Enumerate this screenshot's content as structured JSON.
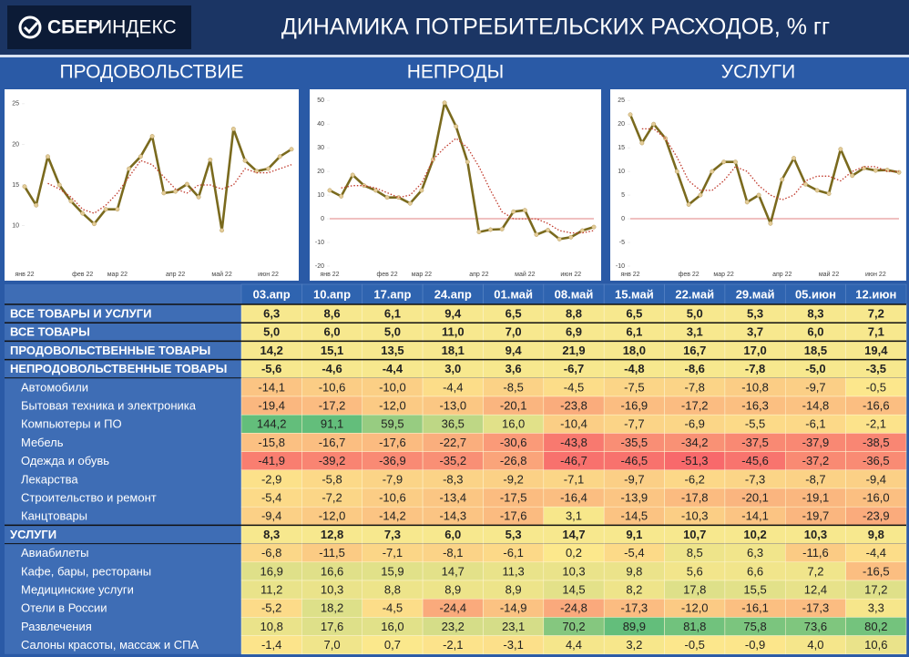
{
  "header": {
    "logo_brand": "СБЕР",
    "logo_product": "ИНДЕКС",
    "title": "ДИНАМИКА ПОТРЕБИТЕЛЬСКИХ РАСХОДОВ, % гг"
  },
  "chart_data": [
    {
      "type": "line",
      "title": "ПРОДОВОЛЬСТВИЕ",
      "categories": [
        "янв 22",
        null,
        null,
        null,
        null,
        "фев 22",
        null,
        null,
        "мар 22",
        null,
        null,
        null,
        null,
        "апр 22",
        null,
        null,
        null,
        "май 22",
        null,
        null,
        null,
        "июн 22",
        null,
        null
      ],
      "series": [
        {
          "color": "#7a6a1e",
          "style": "solid",
          "markers": true,
          "values": [
            14.8,
            12.5,
            18.5,
            15,
            13,
            11.5,
            10.2,
            12,
            12,
            17,
            18.5,
            21,
            14,
            14.2,
            15.1,
            13.5,
            18.1,
            9.4,
            21.9,
            18.0,
            16.7,
            17.0,
            18.5,
            19.4
          ]
        },
        {
          "color": "#c0392b",
          "style": "dotted",
          "markers": false,
          "values": [
            null,
            null,
            15.2,
            14.5,
            13.5,
            12,
            11.5,
            12.5,
            14,
            16,
            18,
            17.5,
            16,
            14.5,
            14,
            15,
            15,
            14.5,
            15,
            17,
            16.5,
            16.5,
            17,
            17.5
          ]
        }
      ],
      "ylim": [
        5,
        26
      ],
      "yticks": [
        10,
        15,
        20,
        25
      ]
    },
    {
      "type": "line",
      "title": "НЕПРОДЫ",
      "categories": [
        "янв 22",
        null,
        null,
        null,
        null,
        "фев 22",
        null,
        null,
        "мар 22",
        null,
        null,
        null,
        null,
        "апр 22",
        null,
        null,
        null,
        "май 22",
        null,
        null,
        null,
        "июн 22",
        null,
        null
      ],
      "series": [
        {
          "color": "#7a6a1e",
          "style": "solid",
          "markers": true,
          "values": [
            12,
            9.5,
            18.5,
            14,
            12,
            9,
            9,
            6.5,
            12,
            25,
            49,
            39,
            24,
            -5.6,
            -4.6,
            -4.4,
            3.0,
            3.6,
            -6.7,
            -4.8,
            -8.6,
            -7.8,
            -5.0,
            -3.5
          ]
        },
        {
          "color": "#c0392b",
          "style": "dotted",
          "markers": false,
          "values": [
            null,
            13,
            14,
            14,
            13,
            11,
            9,
            10,
            15,
            25,
            30,
            34,
            30,
            22,
            12,
            3,
            0,
            0,
            0,
            -2,
            -5,
            -6,
            -6,
            -5
          ]
        }
      ],
      "ylim": [
        -20,
        52
      ],
      "yticks": [
        -20,
        -10,
        0,
        10,
        20,
        30,
        40,
        50
      ]
    },
    {
      "type": "line",
      "title": "УСЛУГИ",
      "categories": [
        "янв 22",
        null,
        null,
        null,
        null,
        "фев 22",
        null,
        null,
        "мар 22",
        null,
        null,
        null,
        null,
        "апр 22",
        null,
        null,
        null,
        "май 22",
        null,
        null,
        null,
        "июн 22",
        null,
        null
      ],
      "series": [
        {
          "color": "#7a6a1e",
          "style": "solid",
          "markers": true,
          "values": [
            22,
            16,
            20,
            17,
            10,
            3,
            5,
            10,
            12,
            12,
            3.5,
            5,
            -1,
            8.3,
            12.8,
            7.3,
            6.0,
            5.3,
            14.7,
            9.1,
            10.7,
            10.2,
            10.3,
            9.8
          ]
        },
        {
          "color": "#c0392b",
          "style": "dotted",
          "markers": false,
          "values": [
            null,
            19,
            19,
            17,
            13,
            8,
            6,
            6,
            8,
            11,
            10,
            7,
            5,
            4,
            5,
            8,
            9,
            9,
            8,
            10,
            11,
            11,
            10,
            10
          ]
        }
      ],
      "ylim": [
        -10,
        26
      ],
      "yticks": [
        -10,
        -5,
        0,
        5,
        10,
        15,
        20,
        25
      ]
    }
  ],
  "table": {
    "columns": [
      "03.апр",
      "10.апр",
      "17.апр",
      "24.апр",
      "01.май",
      "08.май",
      "15.май",
      "22.май",
      "29.май",
      "05.июн",
      "12.июн"
    ],
    "rows": [
      {
        "label": "ВСЕ ТОВАРЫ И УСЛУГИ",
        "total": true,
        "cells": [
          "6,3",
          "8,6",
          "6,1",
          "9,4",
          "6,5",
          "8,8",
          "6,5",
          "5,0",
          "5,3",
          "8,3",
          "7,2"
        ]
      },
      {
        "label": "ВСЕ ТОВАРЫ",
        "total": true,
        "cells": [
          "5,0",
          "6,0",
          "5,0",
          "11,0",
          "7,0",
          "6,9",
          "6,1",
          "3,1",
          "3,7",
          "6,0",
          "7,1"
        ]
      },
      {
        "label": "ПРОДОВОЛЬСТВЕННЫЕ ТОВАРЫ",
        "total": true,
        "cells": [
          "14,2",
          "15,1",
          "13,5",
          "18,1",
          "9,4",
          "21,9",
          "18,0",
          "16,7",
          "17,0",
          "18,5",
          "19,4"
        ]
      },
      {
        "label": "НЕПРОДОВОЛЬСТВЕННЫЕ ТОВАРЫ",
        "total": true,
        "cells": [
          "-5,6",
          "-4,6",
          "-4,4",
          "3,0",
          "3,6",
          "-6,7",
          "-4,8",
          "-8,6",
          "-7,8",
          "-5,0",
          "-3,5"
        ]
      },
      {
        "label": "Автомобили",
        "total": false,
        "cells": [
          "-14,1",
          "-10,6",
          "-10,0",
          "-4,4",
          "-8,5",
          "-4,5",
          "-7,5",
          "-7,8",
          "-10,8",
          "-9,7",
          "-0,5"
        ]
      },
      {
        "label": "Бытовая техника и электроника",
        "total": false,
        "cells": [
          "-19,4",
          "-17,2",
          "-12,0",
          "-13,0",
          "-20,1",
          "-23,8",
          "-16,9",
          "-17,2",
          "-16,3",
          "-14,8",
          "-16,6"
        ]
      },
      {
        "label": "Компьютеры и ПО",
        "total": false,
        "cells": [
          "144,2",
          "91,1",
          "59,5",
          "36,5",
          "16,0",
          "-10,4",
          "-7,7",
          "-6,9",
          "-5,5",
          "-6,1",
          "-2,1"
        ]
      },
      {
        "label": "Мебель",
        "total": false,
        "cells": [
          "-15,8",
          "-16,7",
          "-17,6",
          "-22,7",
          "-30,6",
          "-43,8",
          "-35,5",
          "-34,2",
          "-37,5",
          "-37,9",
          "-38,5"
        ]
      },
      {
        "label": "Одежда и обувь",
        "total": false,
        "cells": [
          "-41,9",
          "-39,2",
          "-36,9",
          "-35,2",
          "-26,8",
          "-46,7",
          "-46,5",
          "-51,3",
          "-45,6",
          "-37,2",
          "-36,5"
        ]
      },
      {
        "label": "Лекарства",
        "total": false,
        "cells": [
          "-2,9",
          "-5,8",
          "-7,9",
          "-8,3",
          "-9,2",
          "-7,1",
          "-9,7",
          "-6,2",
          "-7,3",
          "-8,7",
          "-9,4"
        ]
      },
      {
        "label": "Строительство и ремонт",
        "total": false,
        "cells": [
          "-5,4",
          "-7,2",
          "-10,6",
          "-13,4",
          "-17,5",
          "-16,4",
          "-13,9",
          "-17,8",
          "-20,1",
          "-19,1",
          "-16,0"
        ]
      },
      {
        "label": "Канцтовары",
        "total": false,
        "cells": [
          "-9,4",
          "-12,0",
          "-14,2",
          "-14,3",
          "-17,6",
          "3,1",
          "-14,5",
          "-10,3",
          "-14,1",
          "-19,7",
          "-23,9"
        ]
      },
      {
        "label": "УСЛУГИ",
        "total": true,
        "cells": [
          "8,3",
          "12,8",
          "7,3",
          "6,0",
          "5,3",
          "14,7",
          "9,1",
          "10,7",
          "10,2",
          "10,3",
          "9,8"
        ]
      },
      {
        "label": "Авиабилеты",
        "total": false,
        "cells": [
          "-6,8",
          "-11,5",
          "-7,1",
          "-8,1",
          "-6,1",
          "0,2",
          "-5,4",
          "8,5",
          "6,3",
          "-11,6",
          "-4,4"
        ]
      },
      {
        "label": "Кафе, бары, рестораны",
        "total": false,
        "cells": [
          "16,9",
          "16,6",
          "15,9",
          "14,7",
          "11,3",
          "10,3",
          "9,8",
          "5,6",
          "6,6",
          "7,2",
          "-16,5"
        ]
      },
      {
        "label": "Медицинские услуги",
        "total": false,
        "cells": [
          "11,2",
          "10,3",
          "8,8",
          "8,9",
          "8,9",
          "14,5",
          "8,2",
          "17,8",
          "15,5",
          "12,4",
          "17,2"
        ]
      },
      {
        "label": "Отели в России",
        "total": false,
        "cells": [
          "-5,2",
          "18,2",
          "-4,5",
          "-24,4",
          "-14,9",
          "-24,8",
          "-17,3",
          "-12,0",
          "-16,1",
          "-17,3",
          "3,3"
        ]
      },
      {
        "label": "Развлечения",
        "total": false,
        "cells": [
          "10,8",
          "17,6",
          "16,0",
          "23,2",
          "23,1",
          "70,2",
          "89,9",
          "81,8",
          "75,8",
          "73,6",
          "80,2"
        ]
      },
      {
        "label": "Салоны красоты, массаж и СПА",
        "total": false,
        "cells": [
          "-1,4",
          "7,0",
          "0,7",
          "-2,1",
          "-3,1",
          "4,4",
          "3,2",
          "-0,5",
          "-0,9",
          "4,0",
          "10,6"
        ]
      }
    ]
  }
}
